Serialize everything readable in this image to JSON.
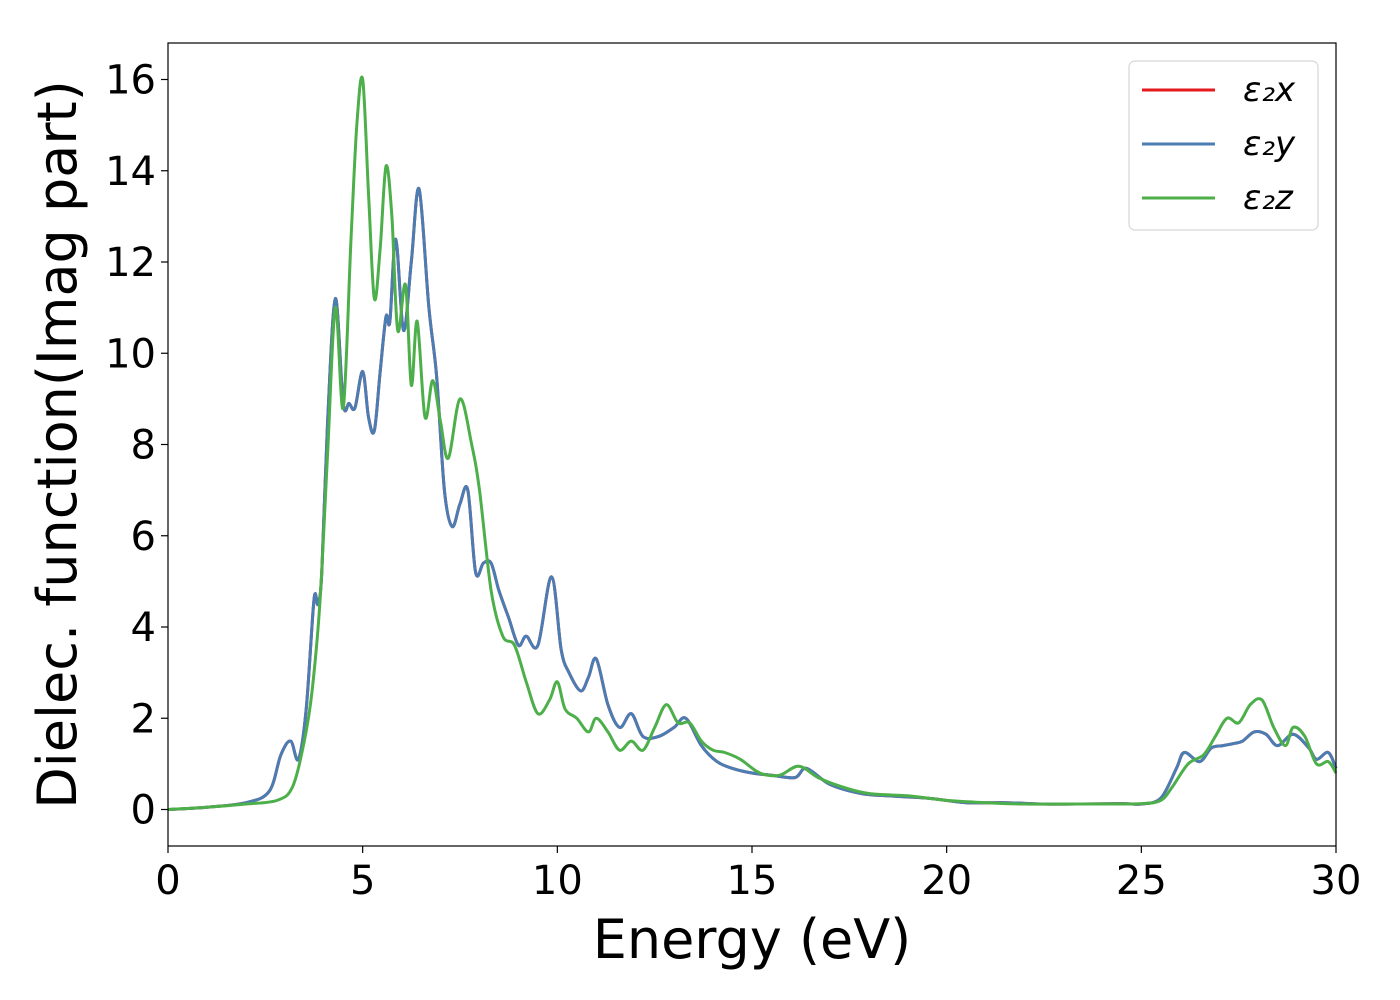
{
  "chart_data": {
    "type": "line",
    "xlabel": "Energy (eV)",
    "ylabel": "Dielec. function(Imag part)",
    "xlim": [
      0,
      30
    ],
    "ylim": [
      -0.8,
      16.8
    ],
    "xticks": [
      0,
      5,
      10,
      15,
      20,
      25,
      30
    ],
    "yticks": [
      0,
      2,
      4,
      6,
      8,
      10,
      12,
      14,
      16
    ],
    "legend_position": "top-right",
    "grid": false,
    "series": [
      {
        "name": "ε₂x",
        "color": "#e41a1c",
        "x": [
          0,
          1,
          2,
          2.6,
          2.9,
          3.15,
          3.35,
          3.55,
          3.75,
          3.85,
          3.95,
          4.1,
          4.3,
          4.5,
          4.65,
          4.8,
          5.0,
          5.15,
          5.3,
          5.45,
          5.6,
          5.7,
          5.85,
          6.05,
          6.25,
          6.45,
          6.7,
          6.9,
          7.1,
          7.3,
          7.5,
          7.7,
          7.9,
          8.1,
          8.3,
          8.5,
          8.75,
          9.0,
          9.2,
          9.5,
          9.85,
          10.1,
          10.3,
          10.6,
          10.8,
          11.0,
          11.3,
          11.6,
          11.9,
          12.2,
          12.6,
          13.0,
          13.3,
          13.7,
          14.1,
          14.5,
          15.0,
          15.5,
          16.1,
          16.4,
          17.0,
          17.8,
          18.5,
          19.5,
          20.5,
          21.5,
          22.5,
          23.5,
          24.5,
          25.0,
          25.5,
          25.9,
          26.1,
          26.5,
          26.8,
          27.1,
          27.4,
          27.6,
          27.9,
          28.2,
          28.5,
          28.9,
          29.3,
          29.5,
          29.8,
          30.0
        ],
        "values": [
          0.0,
          0.05,
          0.15,
          0.4,
          1.2,
          1.5,
          1.1,
          2.2,
          4.6,
          4.5,
          5.2,
          8.5,
          11.2,
          8.9,
          8.9,
          8.8,
          9.6,
          8.6,
          8.3,
          9.6,
          10.8,
          10.7,
          12.5,
          10.5,
          12.0,
          13.6,
          11.0,
          9.5,
          7.0,
          6.2,
          6.7,
          7.0,
          5.2,
          5.4,
          5.4,
          4.8,
          4.2,
          3.6,
          3.8,
          3.6,
          5.1,
          3.5,
          3.0,
          2.6,
          2.9,
          3.3,
          2.3,
          1.8,
          2.1,
          1.6,
          1.6,
          1.8,
          2.0,
          1.4,
          1.05,
          0.9,
          0.8,
          0.75,
          0.7,
          0.9,
          0.55,
          0.35,
          0.3,
          0.25,
          0.15,
          0.15,
          0.12,
          0.12,
          0.13,
          0.12,
          0.25,
          0.9,
          1.25,
          1.05,
          1.35,
          1.4,
          1.45,
          1.5,
          1.7,
          1.65,
          1.4,
          1.65,
          1.35,
          1.1,
          1.25,
          0.9
        ]
      },
      {
        "name": "ε₂y",
        "color": "#4a7db3",
        "x": [
          0,
          1,
          2,
          2.6,
          2.9,
          3.15,
          3.35,
          3.55,
          3.75,
          3.85,
          3.95,
          4.1,
          4.3,
          4.5,
          4.65,
          4.8,
          5.0,
          5.15,
          5.3,
          5.45,
          5.6,
          5.7,
          5.85,
          6.05,
          6.25,
          6.45,
          6.7,
          6.9,
          7.1,
          7.3,
          7.5,
          7.7,
          7.9,
          8.1,
          8.3,
          8.5,
          8.75,
          9.0,
          9.2,
          9.5,
          9.85,
          10.1,
          10.3,
          10.6,
          10.8,
          11.0,
          11.3,
          11.6,
          11.9,
          12.2,
          12.6,
          13.0,
          13.3,
          13.7,
          14.1,
          14.5,
          15.0,
          15.5,
          16.1,
          16.4,
          17.0,
          17.8,
          18.5,
          19.5,
          20.5,
          21.5,
          22.5,
          23.5,
          24.5,
          25.0,
          25.5,
          25.9,
          26.1,
          26.5,
          26.8,
          27.1,
          27.4,
          27.6,
          27.9,
          28.2,
          28.5,
          28.9,
          29.3,
          29.5,
          29.8,
          30.0
        ],
        "values": [
          0.0,
          0.05,
          0.15,
          0.4,
          1.2,
          1.5,
          1.1,
          2.2,
          4.6,
          4.5,
          5.2,
          8.5,
          11.2,
          8.9,
          8.9,
          8.8,
          9.6,
          8.6,
          8.3,
          9.6,
          10.8,
          10.7,
          12.5,
          10.5,
          12.0,
          13.6,
          11.0,
          9.5,
          7.0,
          6.2,
          6.7,
          7.0,
          5.2,
          5.4,
          5.4,
          4.8,
          4.2,
          3.6,
          3.8,
          3.6,
          5.1,
          3.5,
          3.0,
          2.6,
          2.9,
          3.3,
          2.3,
          1.8,
          2.1,
          1.6,
          1.6,
          1.8,
          2.0,
          1.4,
          1.05,
          0.9,
          0.8,
          0.75,
          0.7,
          0.9,
          0.55,
          0.35,
          0.3,
          0.25,
          0.15,
          0.15,
          0.12,
          0.12,
          0.13,
          0.12,
          0.25,
          0.9,
          1.25,
          1.05,
          1.35,
          1.4,
          1.45,
          1.5,
          1.7,
          1.65,
          1.4,
          1.65,
          1.35,
          1.1,
          1.25,
          0.9
        ]
      },
      {
        "name": "ε₂z",
        "color": "#4daf4a",
        "x": [
          0,
          1,
          2,
          2.8,
          3.2,
          3.5,
          3.7,
          3.9,
          4.1,
          4.3,
          4.5,
          4.7,
          4.85,
          5.0,
          5.15,
          5.3,
          5.45,
          5.6,
          5.75,
          5.9,
          6.1,
          6.25,
          6.4,
          6.6,
          6.8,
          7.0,
          7.2,
          7.5,
          7.8,
          8.0,
          8.3,
          8.6,
          8.9,
          9.2,
          9.5,
          9.8,
          10.0,
          10.2,
          10.5,
          10.8,
          11.0,
          11.3,
          11.6,
          11.9,
          12.2,
          12.5,
          12.8,
          13.1,
          13.4,
          13.7,
          14.0,
          14.3,
          14.7,
          15.2,
          15.7,
          16.2,
          16.7,
          17.3,
          18.0,
          19.0,
          20.0,
          21.0,
          22.0,
          23.0,
          24.0,
          25.0,
          25.5,
          25.8,
          26.2,
          26.6,
          26.9,
          27.2,
          27.5,
          27.8,
          28.1,
          28.4,
          28.7,
          28.9,
          29.2,
          29.5,
          29.8,
          30.0
        ],
        "values": [
          0.0,
          0.05,
          0.12,
          0.2,
          0.5,
          1.5,
          2.6,
          4.5,
          7.8,
          11.0,
          8.8,
          12.5,
          15.0,
          16.0,
          13.5,
          11.2,
          12.3,
          14.1,
          13.0,
          10.5,
          11.5,
          9.3,
          10.7,
          8.6,
          9.4,
          8.5,
          7.7,
          9.0,
          8.0,
          7.0,
          4.8,
          3.8,
          3.6,
          2.8,
          2.1,
          2.4,
          2.8,
          2.2,
          2.0,
          1.7,
          2.0,
          1.7,
          1.3,
          1.5,
          1.3,
          1.8,
          2.3,
          1.9,
          1.9,
          1.5,
          1.3,
          1.25,
          1.1,
          0.8,
          0.75,
          0.95,
          0.7,
          0.5,
          0.35,
          0.3,
          0.2,
          0.15,
          0.12,
          0.12,
          0.12,
          0.13,
          0.2,
          0.5,
          1.0,
          1.2,
          1.6,
          2.0,
          1.9,
          2.3,
          2.4,
          1.8,
          1.4,
          1.8,
          1.6,
          1.0,
          1.05,
          0.8
        ]
      }
    ]
  }
}
